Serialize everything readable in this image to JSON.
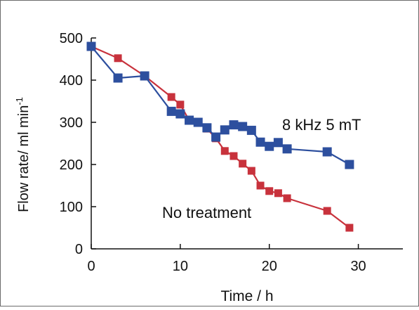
{
  "chart_data": {
    "type": "line",
    "title": "",
    "xlabel": "Time / h",
    "ylabel_main": "Flow rate/ ml min",
    "ylabel_sup": "-1",
    "xlim": [
      0,
      35
    ],
    "ylim": [
      0,
      500
    ],
    "x_ticks": [
      0,
      10,
      20,
      30
    ],
    "y_ticks": [
      0,
      100,
      200,
      300,
      400,
      500
    ],
    "grid": false,
    "series": [
      {
        "name": "No treatment",
        "color": "#c8323c",
        "x": [
          0,
          3,
          6,
          9,
          10,
          11,
          12,
          13,
          14,
          15,
          16,
          17,
          18,
          19,
          20,
          21,
          22,
          26.5,
          29
        ],
        "y": [
          480,
          452,
          410,
          360,
          342,
          305,
          300,
          285,
          262,
          232,
          220,
          202,
          185,
          150,
          137,
          132,
          120,
          90,
          50
        ]
      },
      {
        "name": "8 kHz 5 mT",
        "color": "#2d4f9e",
        "x": [
          0,
          3,
          6,
          9,
          10,
          11,
          12,
          13,
          14,
          15,
          16,
          17,
          18,
          19,
          20,
          21,
          22,
          26.5,
          29
        ],
        "y": [
          480,
          405,
          410,
          326,
          320,
          305,
          300,
          287,
          265,
          282,
          294,
          290,
          281,
          253,
          243,
          252,
          237,
          230,
          200
        ]
      }
    ]
  }
}
